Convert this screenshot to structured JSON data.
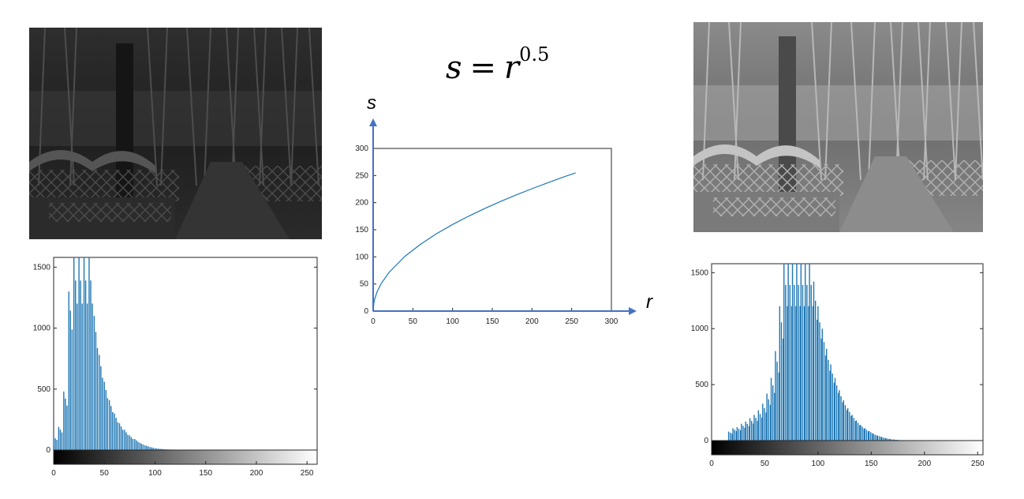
{
  "formula": {
    "lhs": "s",
    "equals": "=",
    "base": "r",
    "exponent": "0.5"
  },
  "colors": {
    "series": "#1f77b4",
    "arrow": "#4472c4",
    "axis": "#262626"
  },
  "chart_data": [
    {
      "type": "bar",
      "title": "",
      "xlabel": "",
      "ylabel": "",
      "xlim": [
        0,
        260
      ],
      "ylim": [
        0,
        1580
      ],
      "x_ticks": [
        "0",
        "50",
        "100",
        "150",
        "200",
        "250"
      ],
      "y_ticks": [
        "0",
        "500",
        "1000",
        "1500"
      ],
      "colorbar": "grayscale",
      "bins": [
        0,
        5,
        10,
        15,
        20,
        25,
        30,
        35,
        40,
        45,
        50,
        55,
        60,
        65,
        70,
        75,
        80,
        85,
        90,
        95,
        100,
        105,
        110,
        115,
        120,
        125,
        130
      ],
      "values": [
        110,
        190,
        480,
        1300,
        1580,
        1580,
        1580,
        1580,
        1100,
        780,
        560,
        410,
        300,
        220,
        165,
        120,
        90,
        60,
        40,
        25,
        15,
        10,
        6,
        4,
        2,
        1,
        0
      ]
    },
    {
      "type": "line",
      "title": "",
      "xlabel": "r",
      "ylabel": "s",
      "xlim": [
        0,
        300
      ],
      "ylim": [
        0,
        300
      ],
      "x_ticks": [
        "0",
        "50",
        "100",
        "150",
        "200",
        "250",
        "300"
      ],
      "y_ticks": [
        "0",
        "50",
        "100",
        "150",
        "200",
        "250",
        "300"
      ],
      "series": [
        {
          "x": [
            0,
            1,
            2,
            5,
            10,
            20,
            40,
            60,
            80,
            100,
            120,
            140,
            160,
            180,
            200,
            220,
            240,
            255
          ],
          "y": [
            0,
            16,
            22.6,
            35.7,
            50.5,
            71.4,
            101,
            123.7,
            142.8,
            159.7,
            174.9,
            188.9,
            202,
            214.2,
            225.8,
            236.8,
            247.4,
            255
          ]
        }
      ]
    },
    {
      "type": "bar",
      "title": "",
      "xlabel": "",
      "ylabel": "",
      "xlim": [
        0,
        255
      ],
      "ylim": [
        0,
        1580
      ],
      "x_ticks": [
        "0",
        "50",
        "100",
        "150",
        "200",
        "250"
      ],
      "y_ticks": [
        "0",
        "500",
        "1000",
        "1500"
      ],
      "colorbar": "grayscale",
      "bins": [
        16,
        20,
        24,
        28,
        32,
        36,
        40,
        44,
        48,
        52,
        56,
        60,
        64,
        68,
        72,
        76,
        80,
        84,
        88,
        92,
        96,
        100,
        104,
        108,
        112,
        116,
        120,
        124,
        128,
        132,
        136,
        140,
        144,
        148,
        152,
        156,
        160,
        164,
        168,
        172,
        176,
        180
      ],
      "values": [
        80,
        110,
        120,
        150,
        170,
        200,
        230,
        270,
        330,
        420,
        560,
        800,
        1200,
        1580,
        1580,
        1580,
        1580,
        1580,
        1580,
        1580,
        1420,
        1200,
        1000,
        820,
        680,
        560,
        450,
        360,
        290,
        230,
        180,
        140,
        110,
        85,
        60,
        45,
        30,
        20,
        12,
        8,
        4,
        2
      ]
    }
  ]
}
